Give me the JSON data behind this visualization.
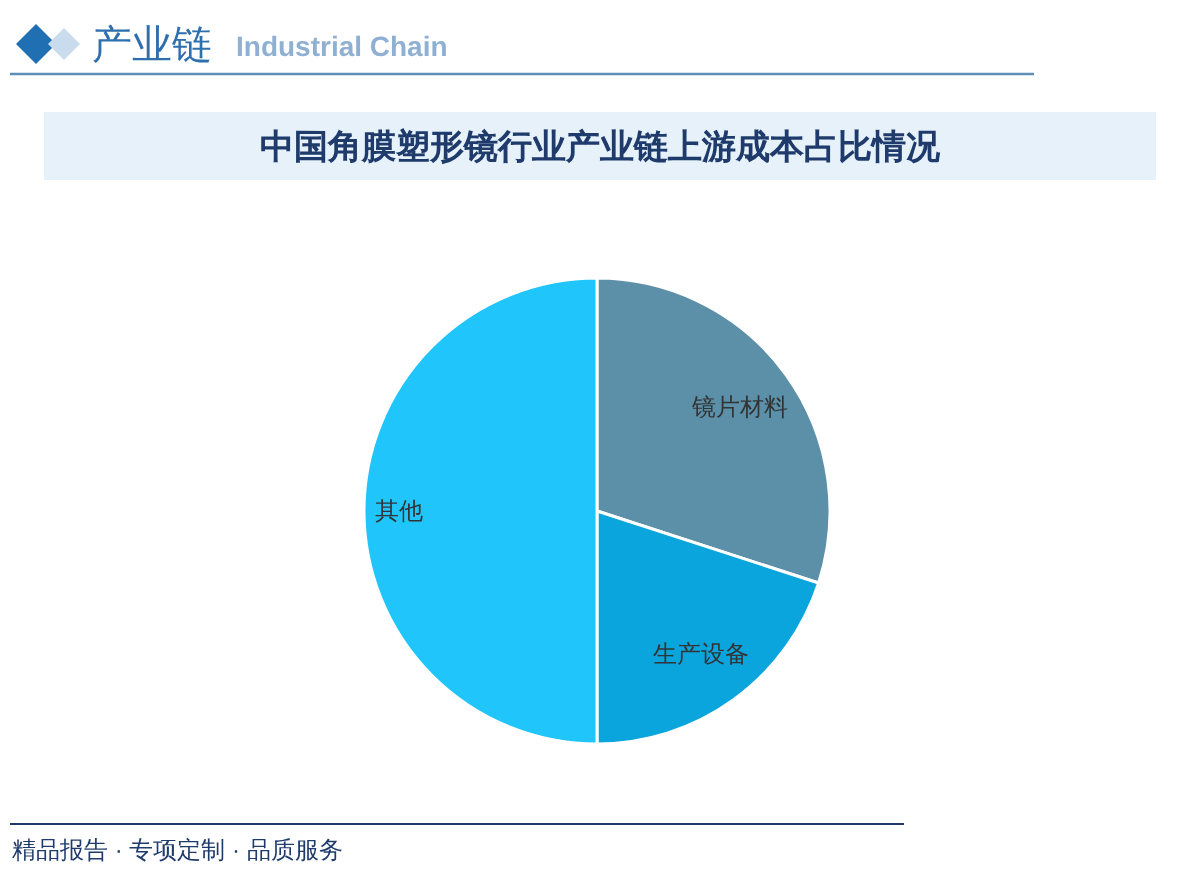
{
  "chart_data": {
    "type": "pie",
    "title": "中国角膜塑形镜行业产业链上游成本占比情况",
    "categories": [
      "镜片材料",
      "生产设备",
      "其他"
    ],
    "values": [
      30,
      20,
      50
    ],
    "colors": [
      "#5b90a8",
      "#0aa5dc",
      "#1fc5fb"
    ],
    "annotations": [
      "产业链",
      "Industrial Chain",
      "精品报告 · 专项定制 · 品质服务"
    ]
  }
}
